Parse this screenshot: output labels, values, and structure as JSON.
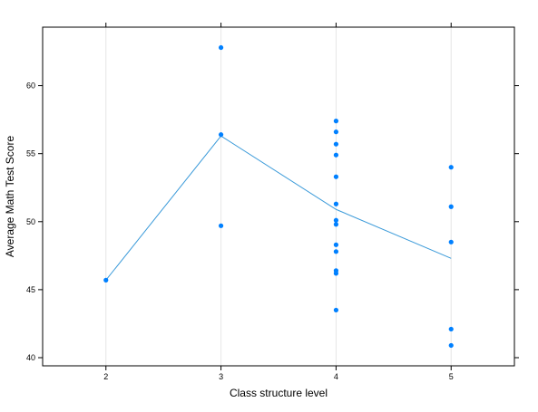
{
  "chart_data": {
    "type": "scatter",
    "xlabel": "Class structure level",
    "ylabel": "Average Math Test Score",
    "xlim": [
      1.45,
      5.55
    ],
    "ylim": [
      39.4,
      64.3
    ],
    "xticks": [
      2,
      3,
      4,
      5
    ],
    "yticks": [
      40,
      45,
      50,
      55,
      60
    ],
    "grid": "vertical lines at x ticks",
    "point_color": "#0080ff",
    "line_color": "#3a9ad9",
    "grid_color": "#e6e6e6",
    "points": [
      {
        "x": 2,
        "y": 45.7
      },
      {
        "x": 3,
        "y": 62.8
      },
      {
        "x": 3,
        "y": 56.4
      },
      {
        "x": 3,
        "y": 49.7
      },
      {
        "x": 4,
        "y": 57.4
      },
      {
        "x": 4,
        "y": 56.6
      },
      {
        "x": 4,
        "y": 55.7
      },
      {
        "x": 4,
        "y": 54.9
      },
      {
        "x": 4,
        "y": 53.3
      },
      {
        "x": 4,
        "y": 51.3
      },
      {
        "x": 4,
        "y": 50.1
      },
      {
        "x": 4,
        "y": 49.8
      },
      {
        "x": 4,
        "y": 48.3
      },
      {
        "x": 4,
        "y": 47.8
      },
      {
        "x": 4,
        "y": 46.4
      },
      {
        "x": 4,
        "y": 46.2
      },
      {
        "x": 4,
        "y": 43.5
      },
      {
        "x": 5,
        "y": 54.0
      },
      {
        "x": 5,
        "y": 51.1
      },
      {
        "x": 5,
        "y": 48.5
      },
      {
        "x": 5,
        "y": 42.1
      },
      {
        "x": 5,
        "y": 40.9
      }
    ],
    "line": {
      "name": "",
      "x": [
        2,
        3,
        4,
        5
      ],
      "y": [
        45.7,
        56.3,
        50.9,
        47.3
      ]
    }
  }
}
